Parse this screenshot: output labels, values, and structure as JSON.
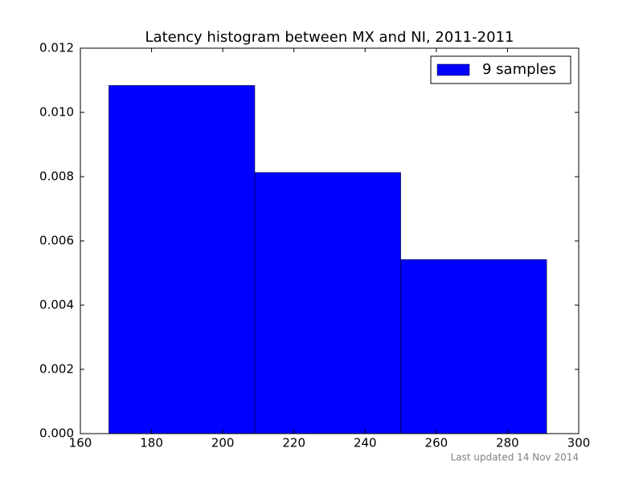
{
  "chart_data": {
    "type": "histogram",
    "title": "Latency histogram between MX and NI, 2011-2011",
    "bins": [
      168,
      209,
      250,
      291
    ],
    "series": [
      {
        "name": "9 samples",
        "color": "#0000ff",
        "values": [
          0.01084,
          0.00813,
          0.00542
        ]
      }
    ],
    "xlim": [
      160,
      300
    ],
    "xticks": [
      160,
      180,
      200,
      220,
      240,
      260,
      280,
      300
    ],
    "ylim": [
      0,
      0.012
    ],
    "yticks": [
      {
        "value": 0,
        "label": "0.000"
      },
      {
        "value": 0.002,
        "label": "0.002"
      },
      {
        "value": 0.004,
        "label": "0.004"
      },
      {
        "value": 0.006,
        "label": "0.006"
      },
      {
        "value": 0.008,
        "label": "0.008"
      },
      {
        "value": 0.01,
        "label": "0.010"
      },
      {
        "value": 0.012,
        "label": "0.012"
      }
    ],
    "legend": "upper right",
    "annotation": "Last updated 14 Nov 2014"
  }
}
